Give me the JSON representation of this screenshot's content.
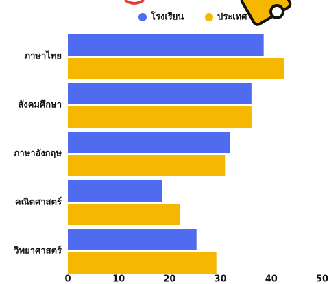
{
  "chart_data": {
    "type": "bar",
    "orientation": "horizontal",
    "categories": [
      "ภาษาไทย",
      "สังคมศึกษา",
      "ภาษาอังกฤษ",
      "คณิตศาสตร์",
      "วิทยาศาสตร์"
    ],
    "series": [
      {
        "name": "โรงเรียน",
        "color": "#4f6cf0",
        "values": [
          38.5,
          36.1,
          31.9,
          18.5,
          25.3
        ]
      },
      {
        "name": "ประเทศ",
        "color": "#f5b700",
        "values": [
          42.5,
          36.1,
          30.9,
          22.0,
          29.2
        ]
      }
    ],
    "xlim": [
      0,
      50
    ],
    "xticks": [
      0,
      10,
      20,
      30,
      40,
      50
    ],
    "grid": false,
    "legend": "top"
  }
}
